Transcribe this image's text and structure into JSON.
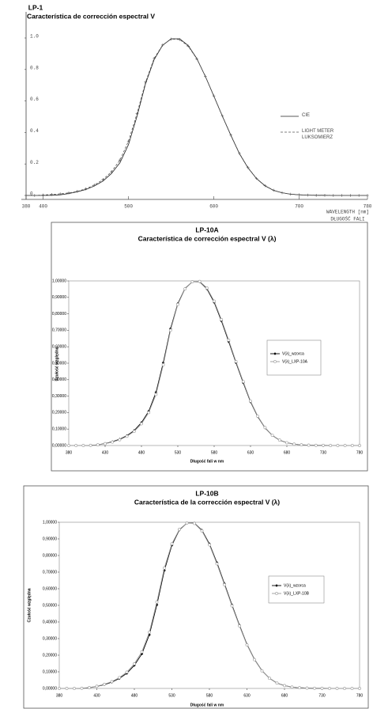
{
  "chart_data": [
    {
      "type": "line",
      "title": "LP-1",
      "subtitle": "Característica de corrección espectral V",
      "xlabel": [
        "WAVELENGTH [nm]",
        "DŁUGOŚĆ FALI"
      ],
      "x": [
        380,
        390,
        400,
        410,
        420,
        430,
        440,
        450,
        460,
        470,
        480,
        490,
        500,
        510,
        520,
        530,
        540,
        550,
        560,
        570,
        580,
        590,
        600,
        610,
        620,
        630,
        640,
        650,
        660,
        670,
        680,
        690,
        700,
        710,
        720,
        730,
        740,
        750,
        760,
        770,
        780
      ],
      "series": [
        {
          "name": "CIE",
          "color": "#222222",
          "line_style": "solid",
          "marker": "none",
          "values": [
            0,
            0,
            0,
            0.001,
            0.004,
            0.012,
            0.023,
            0.038,
            0.06,
            0.091,
            0.139,
            0.208,
            0.323,
            0.503,
            0.71,
            0.862,
            0.954,
            0.995,
            0.995,
            0.952,
            0.87,
            0.757,
            0.631,
            0.503,
            0.381,
            0.265,
            0.175,
            0.107,
            0.061,
            0.032,
            0.017,
            0.008,
            0.004,
            0.002,
            0.001,
            0.001,
            0,
            0,
            0,
            0,
            0
          ]
        },
        {
          "name": "LIGHT METER LUKSOMIERZ",
          "color": "#555555",
          "line_style": "dashed",
          "marker": "plus",
          "values": [
            0,
            0,
            0.003,
            0.006,
            0.01,
            0.016,
            0.026,
            0.042,
            0.066,
            0.1,
            0.15,
            0.225,
            0.345,
            0.52,
            0.72,
            0.87,
            0.955,
            0.993,
            0.99,
            0.948,
            0.868,
            0.757,
            0.632,
            0.505,
            0.383,
            0.267,
            0.177,
            0.108,
            0.062,
            0.033,
            0.017,
            0.008,
            0.004,
            0.002,
            0.001,
            0.001,
            0,
            0,
            0,
            0,
            0
          ]
        }
      ],
      "xlim": [
        380,
        780
      ],
      "xticks": [
        380,
        400,
        500,
        600,
        700,
        780
      ],
      "ylim": [
        0,
        1
      ],
      "yticks": [
        0,
        0.2,
        0.4,
        0.6,
        0.8,
        {
          "value": 1,
          "label": "1.0"
        }
      ],
      "grid": false
    },
    {
      "type": "line",
      "title": "LP-10A",
      "subtitle": "Característica de corrección espectral V (λ)",
      "xlabel": "Długość fali w nm",
      "ylabel": "Czułość względna",
      "x": [
        380,
        390,
        400,
        410,
        420,
        430,
        440,
        450,
        460,
        470,
        480,
        490,
        500,
        510,
        520,
        530,
        540,
        550,
        560,
        570,
        580,
        590,
        600,
        610,
        620,
        630,
        640,
        650,
        660,
        670,
        680,
        690,
        700,
        710,
        720,
        730,
        740,
        750,
        760,
        770,
        780
      ],
      "series": [
        {
          "name": "V(λ)_wzorca",
          "color": "#000000",
          "line_style": "solid",
          "marker": "diamond",
          "values": [
            0,
            0,
            0,
            0.001,
            0.004,
            0.012,
            0.023,
            0.038,
            0.06,
            0.091,
            0.139,
            0.208,
            0.323,
            0.503,
            0.71,
            0.862,
            0.954,
            0.995,
            0.995,
            0.952,
            0.87,
            0.757,
            0.631,
            0.503,
            0.381,
            0.265,
            0.175,
            0.107,
            0.061,
            0.032,
            0.017,
            0.008,
            0.004,
            0.002,
            0.001,
            0.001,
            0,
            0,
            0,
            0,
            0
          ]
        },
        {
          "name": "V(λ)_LXP-10A",
          "color": "#999999",
          "line_style": "solid",
          "marker": "circle",
          "values": [
            0,
            0,
            0,
            0.001,
            0.004,
            0.011,
            0.021,
            0.035,
            0.056,
            0.086,
            0.132,
            0.2,
            0.31,
            0.49,
            0.7,
            0.857,
            0.952,
            0.995,
            0.997,
            0.957,
            0.877,
            0.765,
            0.64,
            0.51,
            0.388,
            0.27,
            0.178,
            0.109,
            0.062,
            0.033,
            0.017,
            0.008,
            0.004,
            0.002,
            0.001,
            0.001,
            0,
            0,
            0,
            0,
            0
          ]
        }
      ],
      "xlim": [
        380,
        780
      ],
      "xticks": [
        380,
        430,
        480,
        530,
        580,
        630,
        680,
        730,
        780
      ],
      "ylim": [
        0,
        1
      ],
      "yticks": [
        {
          "value": 0,
          "label": "0,00000"
        },
        {
          "value": 0.1,
          "label": "0,10000"
        },
        {
          "value": 0.2,
          "label": "0,20000"
        },
        {
          "value": 0.3,
          "label": "0,30000"
        },
        {
          "value": 0.4,
          "label": "0,40000"
        },
        {
          "value": 0.5,
          "label": "0,50000"
        },
        {
          "value": 0.6,
          "label": "0,60000"
        },
        {
          "value": 0.7,
          "label": "0,70000"
        },
        {
          "value": 0.8,
          "label": "0,80000"
        },
        {
          "value": 0.9,
          "label": "0,90000"
        },
        {
          "value": 1,
          "label": "1,00000"
        }
      ],
      "grid": false
    },
    {
      "type": "line",
      "title": "LP-10B",
      "subtitle": "Característica de la corrección espectral V (λ)",
      "xlabel": "Długość fali w nm",
      "ylabel": "Czułość względna",
      "x": [
        380,
        390,
        400,
        410,
        420,
        430,
        440,
        450,
        460,
        470,
        480,
        490,
        500,
        510,
        520,
        530,
        540,
        550,
        560,
        570,
        580,
        590,
        600,
        610,
        620,
        630,
        640,
        650,
        660,
        670,
        680,
        690,
        700,
        710,
        720,
        730,
        740,
        750,
        760,
        770,
        780
      ],
      "series": [
        {
          "name": "V(λ)_wzorca",
          "color": "#000000",
          "line_style": "solid",
          "marker": "diamond",
          "values": [
            0,
            0,
            0,
            0.001,
            0.004,
            0.012,
            0.023,
            0.038,
            0.06,
            0.091,
            0.139,
            0.208,
            0.323,
            0.503,
            0.71,
            0.862,
            0.954,
            0.995,
            0.995,
            0.952,
            0.87,
            0.757,
            0.631,
            0.503,
            0.381,
            0.265,
            0.175,
            0.107,
            0.061,
            0.032,
            0.017,
            0.008,
            0.004,
            0.002,
            0.001,
            0.001,
            0,
            0,
            0,
            0,
            0
          ]
        },
        {
          "name": "V(λ)_LXP-10B",
          "color": "#999999",
          "line_style": "solid",
          "marker": "circle",
          "values": [
            0,
            0,
            0,
            0.001,
            0.005,
            0.013,
            0.025,
            0.041,
            0.065,
            0.098,
            0.148,
            0.22,
            0.338,
            0.52,
            0.725,
            0.87,
            0.957,
            0.995,
            0.993,
            0.948,
            0.864,
            0.75,
            0.624,
            0.497,
            0.376,
            0.262,
            0.173,
            0.106,
            0.061,
            0.032,
            0.017,
            0.008,
            0.004,
            0.002,
            0.001,
            0.001,
            0,
            0,
            0,
            0,
            0
          ]
        }
      ],
      "xlim": [
        380,
        780
      ],
      "xticks": [
        380,
        430,
        480,
        530,
        580,
        630,
        680,
        730,
        780
      ],
      "ylim": [
        0,
        1
      ],
      "yticks": [
        {
          "value": 0,
          "label": "0,00000"
        },
        {
          "value": 0.1,
          "label": "0,10000"
        },
        {
          "value": 0.2,
          "label": "0,20000"
        },
        {
          "value": 0.3,
          "label": "0,30000"
        },
        {
          "value": 0.4,
          "label": "0,40000"
        },
        {
          "value": 0.5,
          "label": "0,50000"
        },
        {
          "value": 0.6,
          "label": "0,60000"
        },
        {
          "value": 0.7,
          "label": "0,70000"
        },
        {
          "value": 0.8,
          "label": "0,80000"
        },
        {
          "value": 0.9,
          "label": "0,90000"
        },
        {
          "value": 1,
          "label": "1,00000"
        }
      ],
      "grid": false
    }
  ]
}
